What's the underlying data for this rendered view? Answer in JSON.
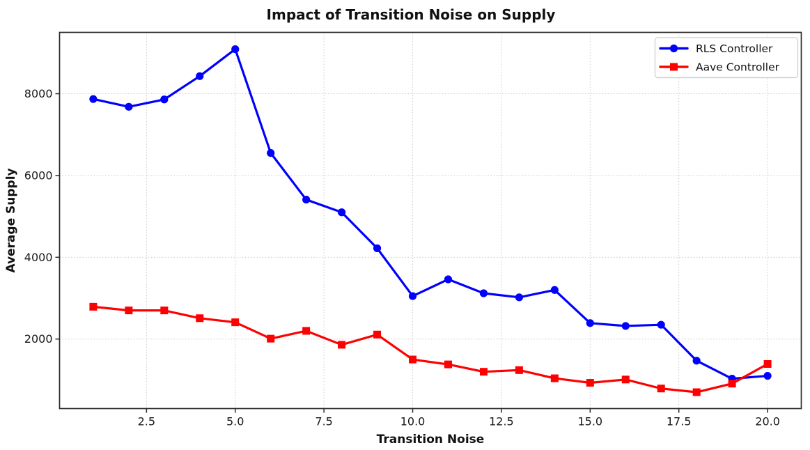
{
  "chart_data": {
    "type": "line",
    "title": "Impact of Transition Noise on Supply",
    "xlabel": "Transition Noise",
    "ylabel": "Average Supply",
    "x": [
      1,
      2,
      3,
      4,
      5,
      6,
      7,
      8,
      9,
      10,
      11,
      12,
      13,
      14,
      15,
      16,
      17,
      18,
      19,
      20
    ],
    "series": [
      {
        "name": "RLS Controller",
        "color": "#0000ff",
        "marker": "circle",
        "values": [
          7870,
          7680,
          7860,
          8430,
          9090,
          6550,
          5410,
          5100,
          4220,
          3050,
          3460,
          3120,
          3020,
          3200,
          2390,
          2320,
          2350,
          1470,
          1030,
          1100
        ]
      },
      {
        "name": "Aave Controller",
        "color": "#ff0000",
        "marker": "square",
        "values": [
          2790,
          2700,
          2700,
          2510,
          2410,
          2010,
          2200,
          1860,
          2110,
          1500,
          1380,
          1200,
          1240,
          1040,
          930,
          1010,
          790,
          700,
          910,
          1390
        ]
      }
    ],
    "xlim": [
      0.05,
      20.95
    ],
    "ylim": [
      300,
      9500
    ],
    "xticks": [
      2.5,
      5.0,
      7.5,
      10.0,
      12.5,
      15.0,
      17.5,
      20.0
    ],
    "xtick_labels": [
      "2.5",
      "5.0",
      "7.5",
      "10.0",
      "12.5",
      "15.0",
      "17.5",
      "20.0"
    ],
    "yticks": [
      2000,
      4000,
      6000,
      8000
    ],
    "ytick_labels": [
      "2000",
      "4000",
      "6000",
      "8000"
    ],
    "grid": true,
    "grid_color": "#c8c8c8",
    "spine_color": "#2b2b2b",
    "legend_position": "upper right"
  }
}
